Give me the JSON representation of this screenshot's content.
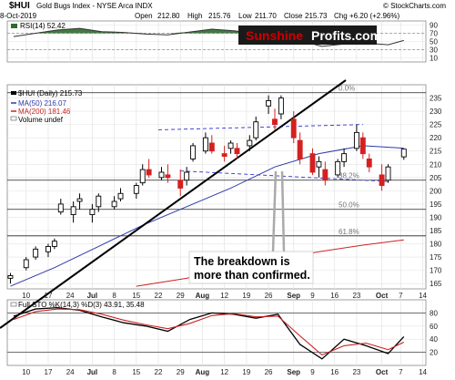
{
  "header": {
    "symbol": "$HUI",
    "name": "Gold Bugs Index - NYSE Arca INDX",
    "date": "8-Oct-2019",
    "open_label": "Open",
    "open": "212.80",
    "high_label": "High",
    "high": "215.76",
    "low_label": "Low",
    "low": "211.70",
    "close_label": "Close",
    "close": "215.73",
    "chg_label": "Chg",
    "chg": "+6.20 (+2.96%)",
    "credit": "© StockCharts.com"
  },
  "brand": {
    "part1": "Sunshine",
    "part2": "Profits.com",
    "color1": "#cc0000",
    "color2": "#ffffff",
    "bg": "#1a1a1a"
  },
  "annotation": {
    "line1": "The breakdown is",
    "line2": "more than confirmed."
  },
  "colors": {
    "rsi_fill": "#2e6b2e",
    "ma50": "#2b3aa8",
    "ma200": "#cc2222",
    "up": "#000000",
    "down": "#d42020",
    "trend": "#3333cc",
    "stoch_k": "#000000",
    "stoch_d": "#cc2222"
  },
  "chart_data": [
    {
      "type": "line",
      "panel": "RSI",
      "legend": "RSI(14) 52.42",
      "ylim": [
        0,
        100
      ],
      "yticks": [
        10,
        30,
        50,
        70,
        90
      ],
      "levels": [
        30,
        70
      ],
      "x": [
        "2019-06-06",
        "2019-06-13",
        "2019-06-20",
        "2019-06-27",
        "2019-07-04",
        "2019-07-11",
        "2019-07-18",
        "2019-07-25",
        "2019-08-01",
        "2019-08-08",
        "2019-08-15",
        "2019-08-22",
        "2019-08-29",
        "2019-09-05",
        "2019-09-12",
        "2019-09-19",
        "2019-09-26",
        "2019-10-03",
        "2019-10-08"
      ],
      "values": [
        62,
        70,
        78,
        82,
        74,
        72,
        68,
        66,
        73,
        80,
        76,
        70,
        72,
        52,
        38,
        44,
        46,
        42,
        52.42
      ]
    },
    {
      "type": "candlestick",
      "panel": "price",
      "legend": [
        "$HUI (Daily) 215.73",
        "MA(50) 216.07",
        "MA(200) 181.46",
        "Volume undef"
      ],
      "ylim": [
        163,
        240
      ],
      "yticks": [
        165,
        170,
        175,
        180,
        185,
        190,
        195,
        200,
        205,
        210,
        215,
        220,
        225,
        230,
        235
      ],
      "xticks": [
        "10",
        "17",
        "24",
        "Jul",
        "8",
        "15",
        "22",
        "29",
        "Aug",
        "12",
        "19",
        "26",
        "Sep",
        "9",
        "16",
        "23",
        "Oct",
        "7",
        "14"
      ],
      "fib_levels": [
        {
          "label": "0.0%",
          "value": 237
        },
        {
          "label": "38.2%",
          "value": 204
        },
        {
          "label": "50.0%",
          "value": 193
        },
        {
          "label": "61.8%",
          "value": 183
        }
      ],
      "candles": [
        {
          "x": "2019-06-05",
          "o": 167,
          "h": 169,
          "l": 165,
          "c": 168
        },
        {
          "x": "2019-06-10",
          "o": 171,
          "h": 175,
          "l": 170,
          "c": 174
        },
        {
          "x": "2019-06-13",
          "o": 175,
          "h": 179,
          "l": 174,
          "c": 178
        },
        {
          "x": "2019-06-17",
          "o": 177,
          "h": 180,
          "l": 175,
          "c": 179
        },
        {
          "x": "2019-06-19",
          "o": 179,
          "h": 182,
          "l": 178,
          "c": 181
        },
        {
          "x": "2019-06-21",
          "o": 192,
          "h": 197,
          "l": 191,
          "c": 195
        },
        {
          "x": "2019-06-25",
          "o": 191,
          "h": 196,
          "l": 188,
          "c": 194
        },
        {
          "x": "2019-06-27",
          "o": 196,
          "h": 199,
          "l": 193,
          "c": 197
        },
        {
          "x": "2019-07-01",
          "o": 191,
          "h": 195,
          "l": 188,
          "c": 193
        },
        {
          "x": "2019-07-03",
          "o": 194,
          "h": 199,
          "l": 192,
          "c": 198
        },
        {
          "x": "2019-07-08",
          "o": 194,
          "h": 198,
          "l": 193,
          "c": 196
        },
        {
          "x": "2019-07-10",
          "o": 197,
          "h": 201,
          "l": 196,
          "c": 199
        },
        {
          "x": "2019-07-15",
          "o": 199,
          "h": 203,
          "l": 197,
          "c": 202
        },
        {
          "x": "2019-07-17",
          "o": 203,
          "h": 210,
          "l": 202,
          "c": 208
        },
        {
          "x": "2019-07-19",
          "o": 208,
          "h": 212,
          "l": 205,
          "c": 206
        },
        {
          "x": "2019-07-23",
          "o": 205,
          "h": 209,
          "l": 204,
          "c": 207
        },
        {
          "x": "2019-07-25",
          "o": 206,
          "h": 210,
          "l": 203,
          "c": 205
        },
        {
          "x": "2019-07-29",
          "o": 204,
          "h": 208,
          "l": 198,
          "c": 201
        },
        {
          "x": "2019-07-31",
          "o": 204,
          "h": 209,
          "l": 202,
          "c": 207
        },
        {
          "x": "2019-08-02",
          "o": 212,
          "h": 218,
          "l": 211,
          "c": 217
        },
        {
          "x": "2019-08-06",
          "o": 215,
          "h": 222,
          "l": 214,
          "c": 220
        },
        {
          "x": "2019-08-08",
          "o": 218,
          "h": 221,
          "l": 214,
          "c": 215
        },
        {
          "x": "2019-08-12",
          "o": 214,
          "h": 217,
          "l": 211,
          "c": 213
        },
        {
          "x": "2019-08-14",
          "o": 216,
          "h": 219,
          "l": 214,
          "c": 218
        },
        {
          "x": "2019-08-16",
          "o": 216,
          "h": 218,
          "l": 212,
          "c": 214
        },
        {
          "x": "2019-08-20",
          "o": 217,
          "h": 221,
          "l": 215,
          "c": 219
        },
        {
          "x": "2019-08-22",
          "o": 220,
          "h": 228,
          "l": 219,
          "c": 226
        },
        {
          "x": "2019-08-26",
          "o": 232,
          "h": 236,
          "l": 229,
          "c": 234
        },
        {
          "x": "2019-08-28",
          "o": 227,
          "h": 231,
          "l": 223,
          "c": 225
        },
        {
          "x": "2019-08-30",
          "o": 229,
          "h": 236,
          "l": 227,
          "c": 235
        },
        {
          "x": "2019-09-03",
          "o": 227,
          "h": 230,
          "l": 218,
          "c": 220
        },
        {
          "x": "2019-09-05",
          "o": 219,
          "h": 222,
          "l": 210,
          "c": 212
        },
        {
          "x": "2019-09-09",
          "o": 214,
          "h": 216,
          "l": 206,
          "c": 207
        },
        {
          "x": "2019-09-11",
          "o": 209,
          "h": 213,
          "l": 205,
          "c": 211
        },
        {
          "x": "2019-09-13",
          "o": 208,
          "h": 211,
          "l": 202,
          "c": 204
        },
        {
          "x": "2019-09-17",
          "o": 206,
          "h": 212,
          "l": 205,
          "c": 211
        },
        {
          "x": "2019-09-19",
          "o": 211,
          "h": 216,
          "l": 209,
          "c": 214
        },
        {
          "x": "2019-09-23",
          "o": 216,
          "h": 225,
          "l": 215,
          "c": 222
        },
        {
          "x": "2019-09-25",
          "o": 220,
          "h": 222,
          "l": 212,
          "c": 214
        },
        {
          "x": "2019-09-27",
          "o": 212,
          "h": 214,
          "l": 207,
          "c": 209
        },
        {
          "x": "2019-10-01",
          "o": 206,
          "h": 210,
          "l": 200,
          "c": 202
        },
        {
          "x": "2019-10-03",
          "o": 204,
          "h": 210,
          "l": 203,
          "c": 209
        },
        {
          "x": "2019-10-08",
          "o": 212.8,
          "h": 215.76,
          "l": 211.7,
          "c": 215.73
        }
      ],
      "ma50": {
        "x": [
          "2019-06-05",
          "2019-06-19",
          "2019-07-03",
          "2019-07-17",
          "2019-07-31",
          "2019-08-14",
          "2019-08-28",
          "2019-09-11",
          "2019-09-25",
          "2019-10-08"
        ],
        "values": [
          164,
          171,
          179,
          187,
          194,
          201,
          209,
          214,
          217,
          216.07
        ]
      },
      "ma200": {
        "x": [
          "2019-07-15",
          "2019-07-31",
          "2019-08-14",
          "2019-08-28",
          "2019-09-11",
          "2019-09-25",
          "2019-10-08"
        ],
        "values": [
          164,
          167,
          171,
          174,
          177,
          179.5,
          181.46
        ]
      }
    },
    {
      "type": "line",
      "panel": "Full STO",
      "legend": "Full STO %K(14,3) %D(3) 43.91, 35.48",
      "ylim": [
        0,
        100
      ],
      "yticks": [
        20,
        40,
        60,
        80
      ],
      "levels": [
        20,
        80
      ],
      "xticks": [
        "10",
        "17",
        "24",
        "Jul",
        "8",
        "15",
        "22",
        "29",
        "Aug",
        "12",
        "19",
        "26",
        "Sep",
        "9",
        "16",
        "23",
        "Oct",
        "7",
        "14"
      ],
      "series": [
        {
          "name": "%K",
          "x": [
            "2019-06-06",
            "2019-06-13",
            "2019-06-20",
            "2019-06-27",
            "2019-07-04",
            "2019-07-11",
            "2019-07-18",
            "2019-07-25",
            "2019-08-01",
            "2019-08-08",
            "2019-08-15",
            "2019-08-22",
            "2019-08-29",
            "2019-09-05",
            "2019-09-12",
            "2019-09-19",
            "2019-09-26",
            "2019-10-03",
            "2019-10-08"
          ],
          "values": [
            75,
            86,
            88,
            84,
            74,
            65,
            60,
            52,
            70,
            80,
            78,
            72,
            78,
            32,
            10,
            40,
            30,
            18,
            43.91
          ]
        },
        {
          "name": "%D",
          "x": [
            "2019-06-06",
            "2019-06-13",
            "2019-06-20",
            "2019-06-27",
            "2019-07-04",
            "2019-07-11",
            "2019-07-18",
            "2019-07-25",
            "2019-08-01",
            "2019-08-08",
            "2019-08-15",
            "2019-08-22",
            "2019-08-29",
            "2019-09-05",
            "2019-09-12",
            "2019-09-19",
            "2019-09-26",
            "2019-10-03",
            "2019-10-08"
          ],
          "values": [
            70,
            82,
            86,
            85,
            78,
            69,
            62,
            56,
            64,
            76,
            79,
            74,
            75,
            45,
            16,
            30,
            34,
            24,
            35.48
          ]
        }
      ]
    }
  ]
}
